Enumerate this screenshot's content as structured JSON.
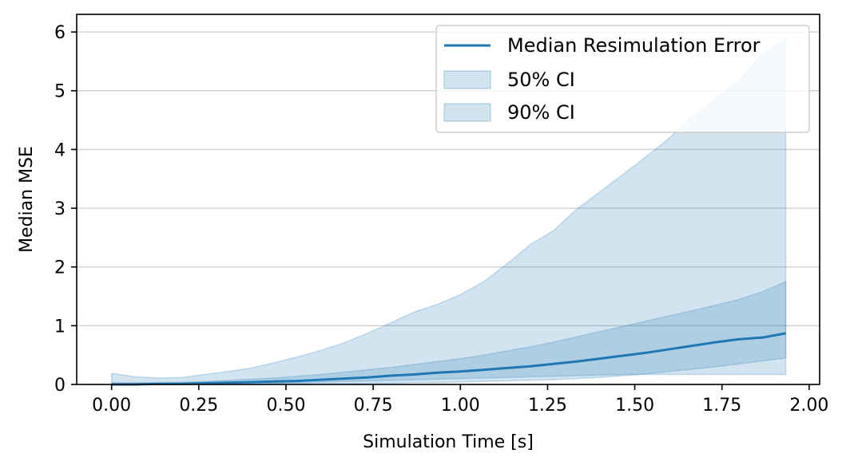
{
  "chart_data": {
    "type": "area",
    "title": "",
    "xlabel": "Simulation Time [s]",
    "ylabel": "Median MSE",
    "xlim": [
      -0.1,
      2.03
    ],
    "ylim": [
      0,
      6.3
    ],
    "xticks": [
      0.0,
      0.25,
      0.5,
      0.75,
      1.0,
      1.25,
      1.5,
      1.75,
      2.0
    ],
    "xtick_labels": [
      "0.00",
      "0.25",
      "0.50",
      "0.75",
      "1.00",
      "1.25",
      "1.50",
      "1.75",
      "2.00"
    ],
    "yticks": [
      0,
      1,
      2,
      3,
      4,
      5,
      6
    ],
    "ytick_labels": [
      "0",
      "1",
      "2",
      "3",
      "4",
      "5",
      "6"
    ],
    "grid": "horizontal",
    "legend_position": "top-right",
    "colors": {
      "line": "#1f77b4",
      "band": "#1f77b4"
    },
    "x": [
      0.0,
      0.067,
      0.133,
      0.2,
      0.267,
      0.333,
      0.4,
      0.467,
      0.533,
      0.6,
      0.667,
      0.733,
      0.8,
      0.867,
      0.933,
      1.0,
      1.067,
      1.133,
      1.2,
      1.267,
      1.333,
      1.4,
      1.467,
      1.533,
      1.6,
      1.667,
      1.733,
      1.8,
      1.867,
      1.933
    ],
    "series": [
      {
        "name": "Median Resimulation Error",
        "kind": "line",
        "values": [
          0.0,
          0.0,
          0.01,
          0.01,
          0.02,
          0.03,
          0.04,
          0.05,
          0.06,
          0.08,
          0.1,
          0.12,
          0.15,
          0.17,
          0.2,
          0.22,
          0.25,
          0.28,
          0.31,
          0.35,
          0.39,
          0.44,
          0.49,
          0.54,
          0.6,
          0.66,
          0.72,
          0.77,
          0.8,
          0.87
        ]
      },
      {
        "name": "50% CI",
        "kind": "band",
        "lower": [
          0.0,
          0.0,
          0.0,
          0.0,
          0.01,
          0.01,
          0.02,
          0.02,
          0.03,
          0.04,
          0.05,
          0.06,
          0.07,
          0.08,
          0.09,
          0.1,
          0.11,
          0.12,
          0.13,
          0.14,
          0.15,
          0.16,
          0.17,
          0.17,
          0.17,
          0.17,
          0.17,
          0.17,
          0.17,
          0.17
        ],
        "upper": [
          0.03,
          0.03,
          0.03,
          0.04,
          0.05,
          0.07,
          0.09,
          0.11,
          0.14,
          0.17,
          0.21,
          0.25,
          0.29,
          0.34,
          0.39,
          0.44,
          0.5,
          0.57,
          0.64,
          0.72,
          0.81,
          0.9,
          0.99,
          1.08,
          1.17,
          1.26,
          1.35,
          1.45,
          1.58,
          1.75
        ]
      },
      {
        "name": "90% CI",
        "kind": "band",
        "lower": [
          0.0,
          0.0,
          0.0,
          0.0,
          0.0,
          0.0,
          0.0,
          0.01,
          0.01,
          0.01,
          0.01,
          0.02,
          0.02,
          0.03,
          0.03,
          0.04,
          0.05,
          0.06,
          0.07,
          0.08,
          0.1,
          0.12,
          0.15,
          0.18,
          0.22,
          0.26,
          0.3,
          0.35,
          0.4,
          0.45
        ],
        "upper": [
          0.19,
          0.13,
          0.11,
          0.12,
          0.17,
          0.22,
          0.28,
          0.37,
          0.47,
          0.58,
          0.71,
          0.87,
          1.05,
          1.23,
          1.36,
          1.53,
          1.75,
          2.05,
          2.38,
          2.62,
          2.98,
          3.28,
          3.58,
          3.88,
          4.2,
          4.56,
          4.86,
          5.18,
          5.62,
          5.88
        ]
      }
    ]
  }
}
